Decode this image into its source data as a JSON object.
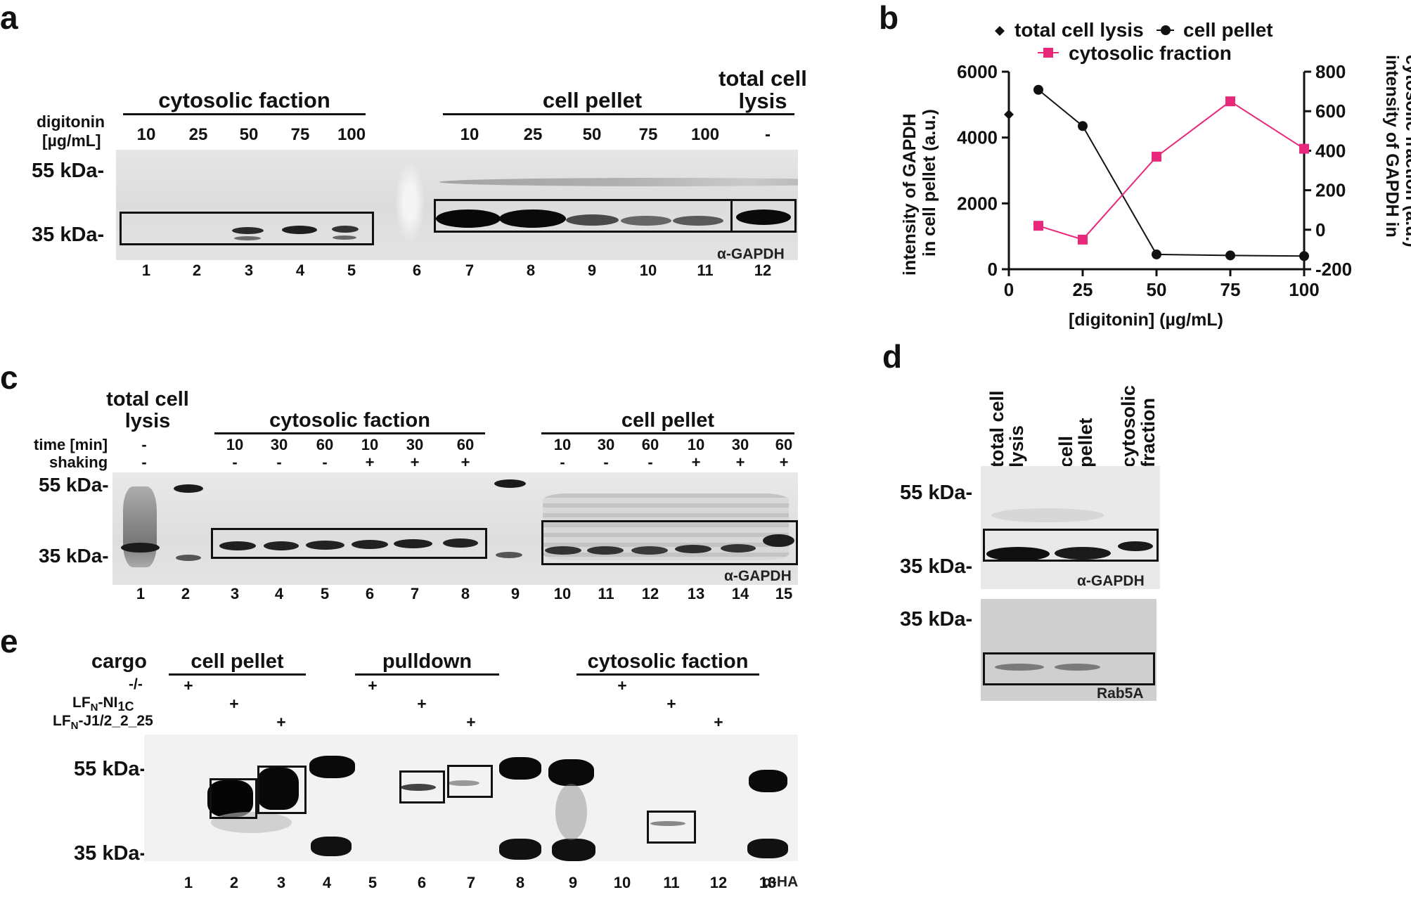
{
  "panels": {
    "a": {
      "label": "a",
      "cytosolic_header": "cytosolic faction",
      "pellet_header": "cell pellet",
      "total_header_line1": "total cell",
      "total_header_line2": "lysis",
      "digitonin_label_line1": "digitonin",
      "digitonin_label_line2": "[µg/mL]",
      "conc_cytosolic": [
        "10",
        "25",
        "50",
        "75",
        "100"
      ],
      "conc_pellet": [
        "10",
        "25",
        "50",
        "75",
        "100"
      ],
      "conc_total": "-",
      "mw_55": "55 kDa-",
      "mw_35": "35 kDa-",
      "antibody": "α-GAPDH",
      "lanes": [
        "1",
        "2",
        "3",
        "4",
        "5",
        "6",
        "7",
        "8",
        "9",
        "10",
        "11",
        "12"
      ]
    },
    "b": {
      "label": "b",
      "legend_total": "total cell lysis",
      "legend_pellet": "cell pellet",
      "legend_cytosolic": "cytosolic fraction",
      "y_left_label_line1": "intensity of GAPDH",
      "y_left_label_line2": "in cell pellet (a.u.)",
      "y_right_label_line1": "intensity of GAPDH in",
      "y_right_label_line2": "cytosolic fraction (a.u.)",
      "x_label": "[digitonin] (µg/mL)"
    },
    "c": {
      "label": "c",
      "total_header_line1": "total cell",
      "total_header_line2": "lysis",
      "cytosolic_header": "cytosolic faction",
      "pellet_header": "cell pellet",
      "time_label": "time [min]",
      "shaking_label": "shaking",
      "total_time": "-",
      "total_shaking": "-",
      "times_cytosolic": [
        "10",
        "30",
        "60",
        "10",
        "30",
        "60"
      ],
      "shaking_cytosolic": [
        "-",
        "-",
        "-",
        "+",
        "+",
        "+"
      ],
      "times_pellet": [
        "10",
        "30",
        "60",
        "10",
        "30",
        "60"
      ],
      "shaking_pellet": [
        "-",
        "-",
        "-",
        "+",
        "+",
        "+"
      ],
      "mw_55": "55 kDa-",
      "mw_35": "35 kDa-",
      "antibody": "α-GAPDH",
      "lanes": [
        "1",
        "2",
        "3",
        "4",
        "5",
        "6",
        "7",
        "8",
        "9",
        "10",
        "11",
        "12",
        "13",
        "14",
        "15"
      ]
    },
    "d": {
      "label": "d",
      "col1_line1": "total cell",
      "col1_line2": "lysis",
      "col2_line1": "cell",
      "col2_line2": "pellet",
      "col3_line1": "cytosolic",
      "col3_line2": "fraction",
      "mw_55": "55 kDa-",
      "mw_35a": "35 kDa-",
      "mw_35b": "35 kDa-",
      "antibody_top": "α-GAPDH",
      "antibody_bottom": "Rab5A"
    },
    "e": {
      "label": "e",
      "cargo_label": "cargo",
      "pellet_header": "cell pellet",
      "pulldown_header": "pulldown",
      "cytosolic_header": "cytosolic faction",
      "row1_label": "-/-",
      "row2_prefix": "LF",
      "row2_sub": "N",
      "row2_mid": "-NI",
      "row2_sub2": "1C",
      "row3_prefix": "LF",
      "row3_sub": "N",
      "row3_rest": "-J1/2_2_25",
      "plus": "+",
      "mw_55": "55 kDa-",
      "mw_35": "35 kDa-",
      "antibody": "α-HA",
      "lanes": [
        "1",
        "2",
        "3",
        "4",
        "5",
        "6",
        "7",
        "8",
        "9",
        "10",
        "11",
        "12",
        "13"
      ]
    }
  },
  "chart_data": {
    "type": "line",
    "title": "",
    "xlabel": "[digitonin] (µg/mL)",
    "ylabel": "intensity of GAPDH in cell pellet (a.u.)",
    "y2label": "intensity of GAPDH in cytosolic fraction (a.u.)",
    "xlim": [
      0,
      100
    ],
    "ylim": [
      0,
      6000
    ],
    "y2lim": [
      -200,
      800
    ],
    "x_ticks": [
      "0",
      "25",
      "50",
      "75",
      "100"
    ],
    "y_ticks": [
      "0",
      "2000",
      "4000",
      "6000"
    ],
    "y2_ticks": [
      "-200",
      "0",
      "200",
      "400",
      "600",
      "800"
    ],
    "legend": "top",
    "series": [
      {
        "name": "total cell lysis",
        "axis": "left",
        "marker": "diamond",
        "color": "#111111",
        "x": [
          0
        ],
        "y": [
          4700
        ]
      },
      {
        "name": "cell pellet",
        "axis": "left",
        "marker": "circle",
        "color": "#111111",
        "x": [
          10,
          25,
          50,
          75,
          100
        ],
        "y": [
          5450,
          4350,
          450,
          420,
          400
        ]
      },
      {
        "name": "cytosolic fraction",
        "axis": "right",
        "marker": "square",
        "color": "#e8287a",
        "x": [
          10,
          25,
          50,
          75,
          100
        ],
        "y": [
          20,
          -50,
          370,
          650,
          410
        ]
      }
    ]
  }
}
